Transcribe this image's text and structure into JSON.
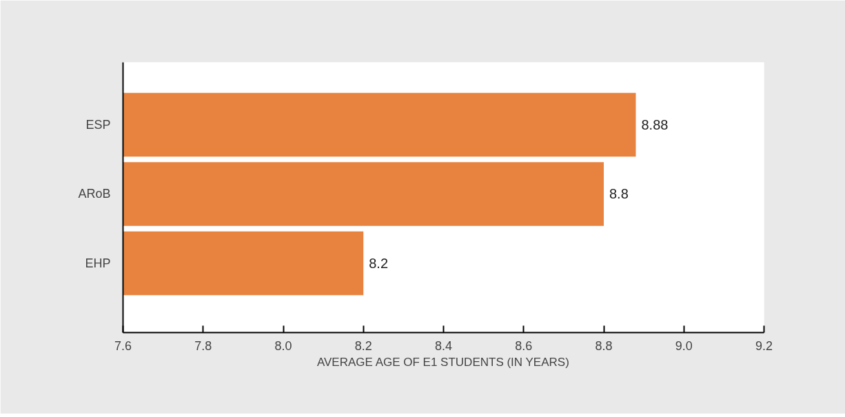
{
  "chart_data": {
    "type": "bar",
    "orientation": "horizontal",
    "xlabel": "AVERAGE AGE OF E1 STUDENTS (IN YEARS)",
    "categories": [
      "ESP",
      "ARoB",
      "EHP"
    ],
    "values": [
      8.88,
      8.8,
      8.2
    ],
    "color": "#e8833f",
    "data_labels": true,
    "xlim": [
      7.6,
      9.2
    ],
    "xticks": [
      7.6,
      7.8,
      {
        "value": 8,
        "label": "8.0"
      },
      8.2,
      8.4,
      8.6,
      8.8,
      {
        "value": 9,
        "label": "9.0"
      },
      9.2
    ]
  }
}
